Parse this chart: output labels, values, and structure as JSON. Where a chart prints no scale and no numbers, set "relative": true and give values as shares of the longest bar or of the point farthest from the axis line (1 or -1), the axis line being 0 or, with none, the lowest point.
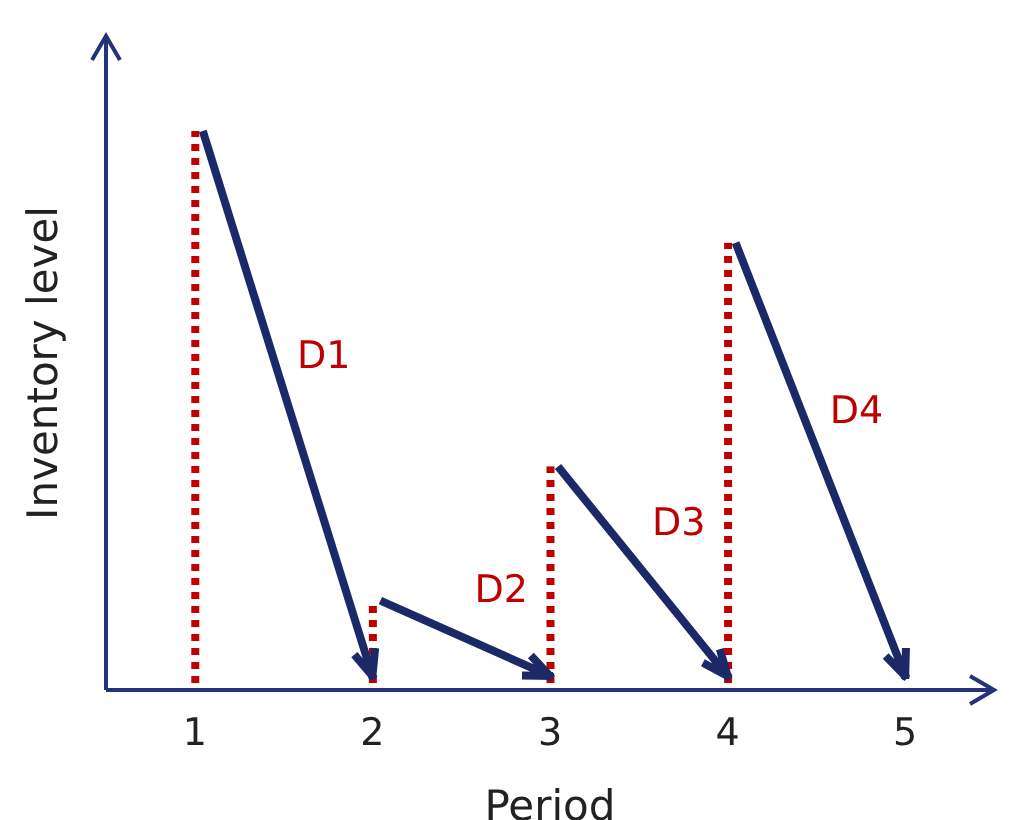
{
  "chart_data": {
    "type": "bar",
    "relative": true,
    "xlabel": "Period",
    "ylabel": "Inventory level",
    "categories": [
      "1",
      "2",
      "3",
      "4",
      "5"
    ],
    "color": "#c00000",
    "line_style": "dotted",
    "values": [
      1,
      0.16,
      0.4,
      0.8,
      null
    ],
    "annotations": [
      "D1",
      "D2",
      "D3",
      "D4"
    ]
  }
}
